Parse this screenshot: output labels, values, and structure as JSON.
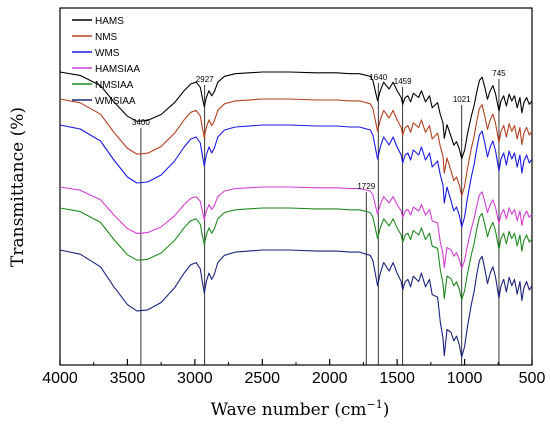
{
  "chart_data": {
    "type": "line",
    "title": "",
    "xlabel": "Wave number (cm",
    "xlabel_sup": "−1",
    "xlabel_tail": ")",
    "ylabel": "Transmittance (%)",
    "x_reversed": true,
    "xlim": [
      4000,
      500
    ],
    "x_ticks": [
      4000,
      3500,
      3000,
      2500,
      2000,
      1500,
      1000,
      500
    ],
    "y_ticks_shown": false,
    "grid": false,
    "legend_position": "top-left",
    "annotations": [
      {
        "label": "3400",
        "x": 3400
      },
      {
        "label": "2927",
        "x": 2927
      },
      {
        "label": "1729",
        "x": 1729
      },
      {
        "label": "1640",
        "x": 1640
      },
      {
        "label": "1459",
        "x": 1459
      },
      {
        "label": "1021",
        "x": 1021
      },
      {
        "label": "745",
        "x": 745
      }
    ],
    "series": [
      {
        "name": "HAMS",
        "color": "#000000",
        "base": 72
      },
      {
        "name": "NMS",
        "color": "#b5401f",
        "base": 99
      },
      {
        "name": "WMS",
        "color": "#1a1ae6",
        "base": 125
      },
      {
        "name": "HAMSIAA",
        "color": "#d43fd4",
        "base": 187
      },
      {
        "name": "NMSIAA",
        "color": "#1f8a1f",
        "base": 208
      },
      {
        "name": "WMSIAA",
        "color": "#1a237e",
        "base": 250
      }
    ]
  }
}
